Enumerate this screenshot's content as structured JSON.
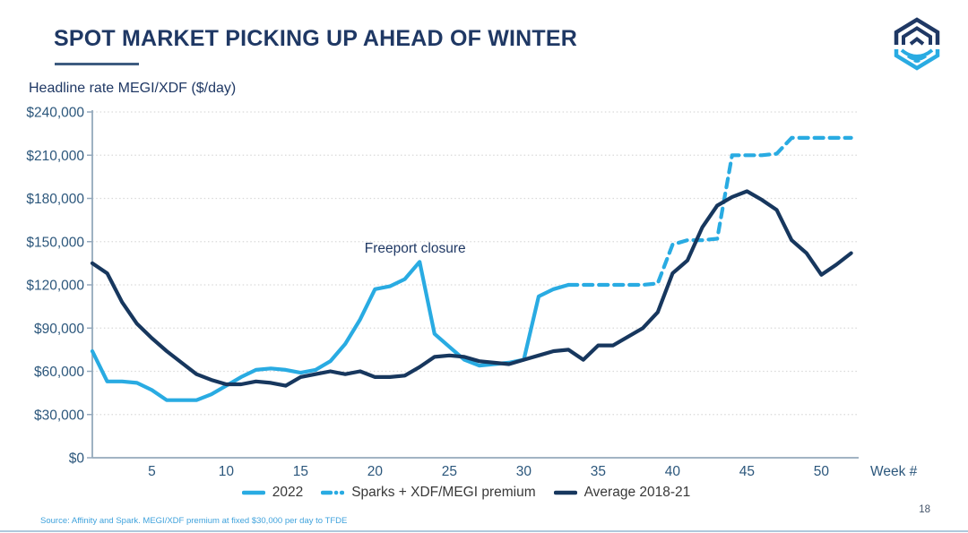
{
  "slide": {
    "title": "SPOT MARKET PICKING UP AHEAD OF WINTER",
    "page_number": "18",
    "source_note": "Source: Affinity and Spark. MEGI/XDF premium at fixed $30,000 per day to TFDE",
    "logo": {
      "name": "hexagon-shield-waves-logo",
      "navy": "#1F3864",
      "blue": "#29ABE2"
    }
  },
  "chart_data": {
    "type": "line",
    "title": "",
    "ylabel": "Headline rate MEGI/XDF ($/day)",
    "xlabel": "Week #",
    "ylim": [
      0,
      240000
    ],
    "xlim": [
      1,
      52
    ],
    "grid": "horizontal-dotted",
    "legend_position": "bottom-center",
    "axis_color": "#94A9BC",
    "grid_color": "#D9D9D9",
    "tick_label_color": "#2C577C",
    "y_ticks": [
      {
        "value": 0,
        "label": "$0"
      },
      {
        "value": 30000,
        "label": "$30,000"
      },
      {
        "value": 60000,
        "label": "$60,000"
      },
      {
        "value": 90000,
        "label": "$90,000"
      },
      {
        "value": 120000,
        "label": "$120,000"
      },
      {
        "value": 150000,
        "label": "$150,000"
      },
      {
        "value": 180000,
        "label": "$180,000"
      },
      {
        "value": 210000,
        "label": "$210,000"
      },
      {
        "value": 240000,
        "label": "$240,000"
      }
    ],
    "x_ticks": [
      5,
      10,
      15,
      20,
      25,
      30,
      35,
      40,
      45,
      50
    ],
    "annotation": {
      "text": "Freeport closure",
      "week": 19.3,
      "value": 145000
    },
    "series": [
      {
        "name": "2022",
        "color": "#29ABE2",
        "style": "solid",
        "x": [
          1,
          2,
          3,
          4,
          5,
          6,
          7,
          8,
          9,
          10,
          11,
          12,
          13,
          14,
          15,
          16,
          17,
          18,
          19,
          20,
          21,
          22,
          23,
          24,
          25,
          26,
          27,
          28,
          29,
          30,
          31,
          32,
          33
        ],
        "values": [
          74000,
          53000,
          53000,
          52000,
          47000,
          40000,
          40000,
          40000,
          44000,
          50000,
          56000,
          61000,
          62000,
          61000,
          59000,
          61000,
          67000,
          79000,
          96000,
          117000,
          119000,
          124000,
          136000,
          86000,
          77000,
          68000,
          64000,
          65000,
          66000,
          68000,
          112000,
          117000,
          120000
        ]
      },
      {
        "name": "Sparks + XDF/MEGI premium",
        "color": "#29ABE2",
        "style": "dashed",
        "x": [
          33,
          34,
          35,
          36,
          37,
          38,
          39,
          40,
          41,
          42,
          43,
          44,
          45,
          46,
          47,
          48,
          49,
          50,
          51,
          52
        ],
        "values": [
          120000,
          120000,
          120000,
          120000,
          120000,
          120000,
          121000,
          148000,
          151000,
          151000,
          152000,
          210000,
          210000,
          210000,
          211000,
          222000,
          222000,
          222000,
          222000,
          222000
        ]
      },
      {
        "name": "Average 2018-21",
        "color": "#17375E",
        "style": "solid",
        "x": [
          1,
          2,
          3,
          4,
          5,
          6,
          7,
          8,
          9,
          10,
          11,
          12,
          13,
          14,
          15,
          16,
          17,
          18,
          19,
          20,
          21,
          22,
          23,
          24,
          25,
          26,
          27,
          28,
          29,
          30,
          31,
          32,
          33,
          34,
          35,
          36,
          37,
          38,
          39,
          40,
          41,
          42,
          43,
          44,
          45,
          46,
          47,
          48,
          49,
          50,
          51,
          52
        ],
        "values": [
          135000,
          128000,
          108000,
          93000,
          83000,
          74000,
          66000,
          58000,
          54000,
          51000,
          51000,
          53000,
          52000,
          50000,
          56000,
          58000,
          60000,
          58000,
          60000,
          56000,
          56000,
          57000,
          63000,
          70000,
          71000,
          70000,
          67000,
          66000,
          65000,
          68000,
          71000,
          74000,
          75000,
          68000,
          78000,
          78000,
          84000,
          90000,
          101000,
          128000,
          137000,
          160000,
          175000,
          181000,
          185000,
          179000,
          172000,
          151000,
          142000,
          127000,
          134000,
          142000
        ]
      }
    ]
  }
}
